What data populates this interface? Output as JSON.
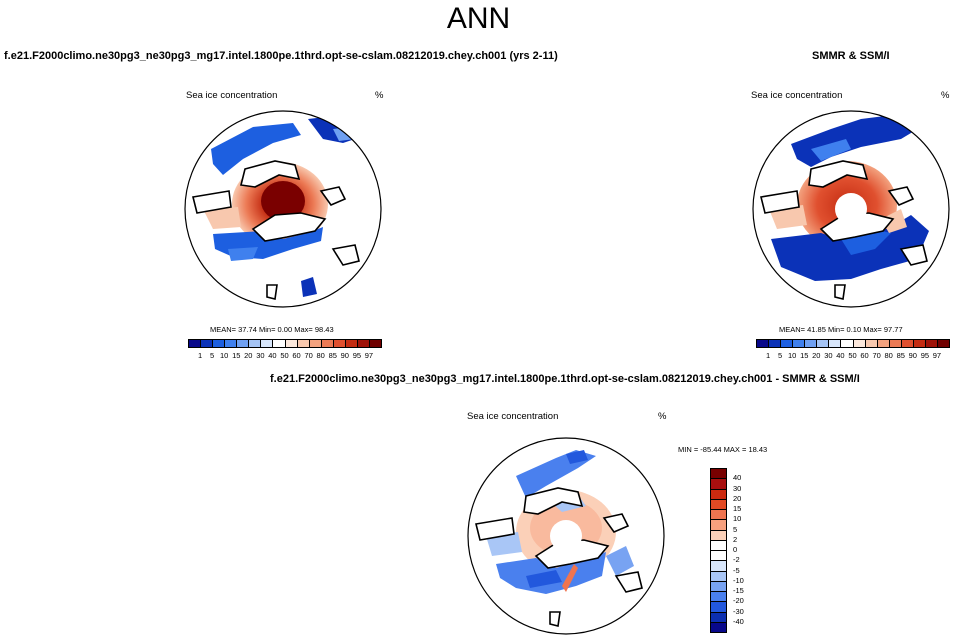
{
  "figure": {
    "title": "ANN",
    "diff_title": "f.e21.F2000climo.ne30pg3_ne30pg3_mg17.intel.1800pe.1thrd.opt-se-cslam.08212019.chey.ch001 - SMMR & SSM/I"
  },
  "panels": [
    {
      "title": "f.e21.F2000climo.ne30pg3_ne30pg3_mg17.intel.1800pe.1thrd.opt-se-cslam.08212019.chey.ch001 (yrs 2-11)",
      "variable": "Sea ice concentration",
      "units": "%",
      "stats": "MEAN=  37.74  Min=   0.00  Max=  98.43",
      "colorbar_labels": [
        "1",
        "5",
        "10",
        "15",
        "20",
        "30",
        "40",
        "50",
        "60",
        "70",
        "80",
        "85",
        "90",
        "95",
        "97"
      ]
    },
    {
      "title": "SMMR & SSM/I",
      "variable": "Sea ice concentration",
      "units": "%",
      "stats": "MEAN=  41.85  Min=   0.10  Max=  97.77",
      "colorbar_labels": [
        "1",
        "5",
        "10",
        "15",
        "20",
        "30",
        "40",
        "50",
        "60",
        "70",
        "80",
        "85",
        "90",
        "95",
        "97"
      ]
    },
    {
      "variable": "Sea ice concentration",
      "units": "%",
      "stats": "MIN = -85.44 MAX =  18.43",
      "colorbar_labels": [
        "40",
        "30",
        "20",
        "15",
        "10",
        "5",
        "2",
        "0",
        "-2",
        "-5",
        "-10",
        "-15",
        "-20",
        "-30",
        "-40"
      ]
    }
  ],
  "colors": {
    "seq": [
      "#08088a",
      "#0b32b8",
      "#1d5fe0",
      "#3f80ee",
      "#6fa0f2",
      "#a5c4f5",
      "#d8e6fb",
      "#ffffff",
      "#fce8dc",
      "#f8c8ae",
      "#f3a27f",
      "#ec7a55",
      "#e0502f",
      "#c42c12",
      "#9e1208",
      "#700000"
    ],
    "div": [
      "#780000",
      "#a80f0f",
      "#cc2a10",
      "#e24a24",
      "#ef7450",
      "#f7a07e",
      "#fbd0b8",
      "#ffffff",
      "#ffffff",
      "#d8e6fb",
      "#a9c6f6",
      "#78a3f2",
      "#4a80ee",
      "#2258dd",
      "#0c2fb0",
      "#08088a"
    ]
  }
}
